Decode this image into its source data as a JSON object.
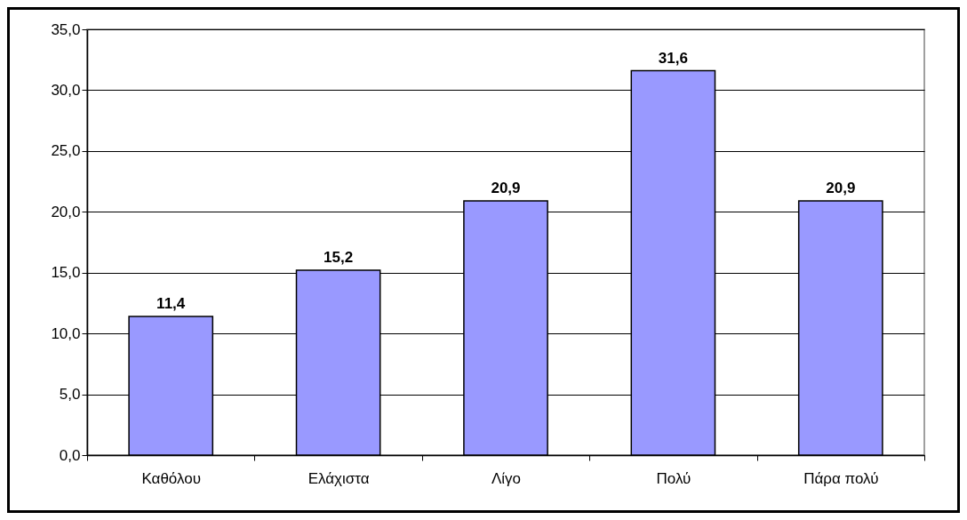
{
  "chart_data": {
    "type": "bar",
    "categories": [
      "Καθόλου",
      "Ελάχιστα",
      "Λίγο",
      "Πολύ",
      "Πάρα πολύ"
    ],
    "values": [
      11.4,
      15.2,
      20.9,
      31.6,
      20.9
    ],
    "value_labels": [
      "11,4",
      "15,2",
      "20,9",
      "31,6",
      "20,9"
    ],
    "color": "#9999ff",
    "ylim": [
      0,
      35
    ],
    "yticks": [
      {
        "value": 0,
        "label": "0,0"
      },
      {
        "value": 5,
        "label": "5,0"
      },
      {
        "value": 10,
        "label": "10,0"
      },
      {
        "value": 15,
        "label": "15,0"
      },
      {
        "value": 20,
        "label": "20,0"
      },
      {
        "value": 25,
        "label": "25,0"
      },
      {
        "value": 30,
        "label": "30,0"
      },
      {
        "value": 35,
        "label": "35,0"
      }
    ],
    "grid": "y"
  }
}
